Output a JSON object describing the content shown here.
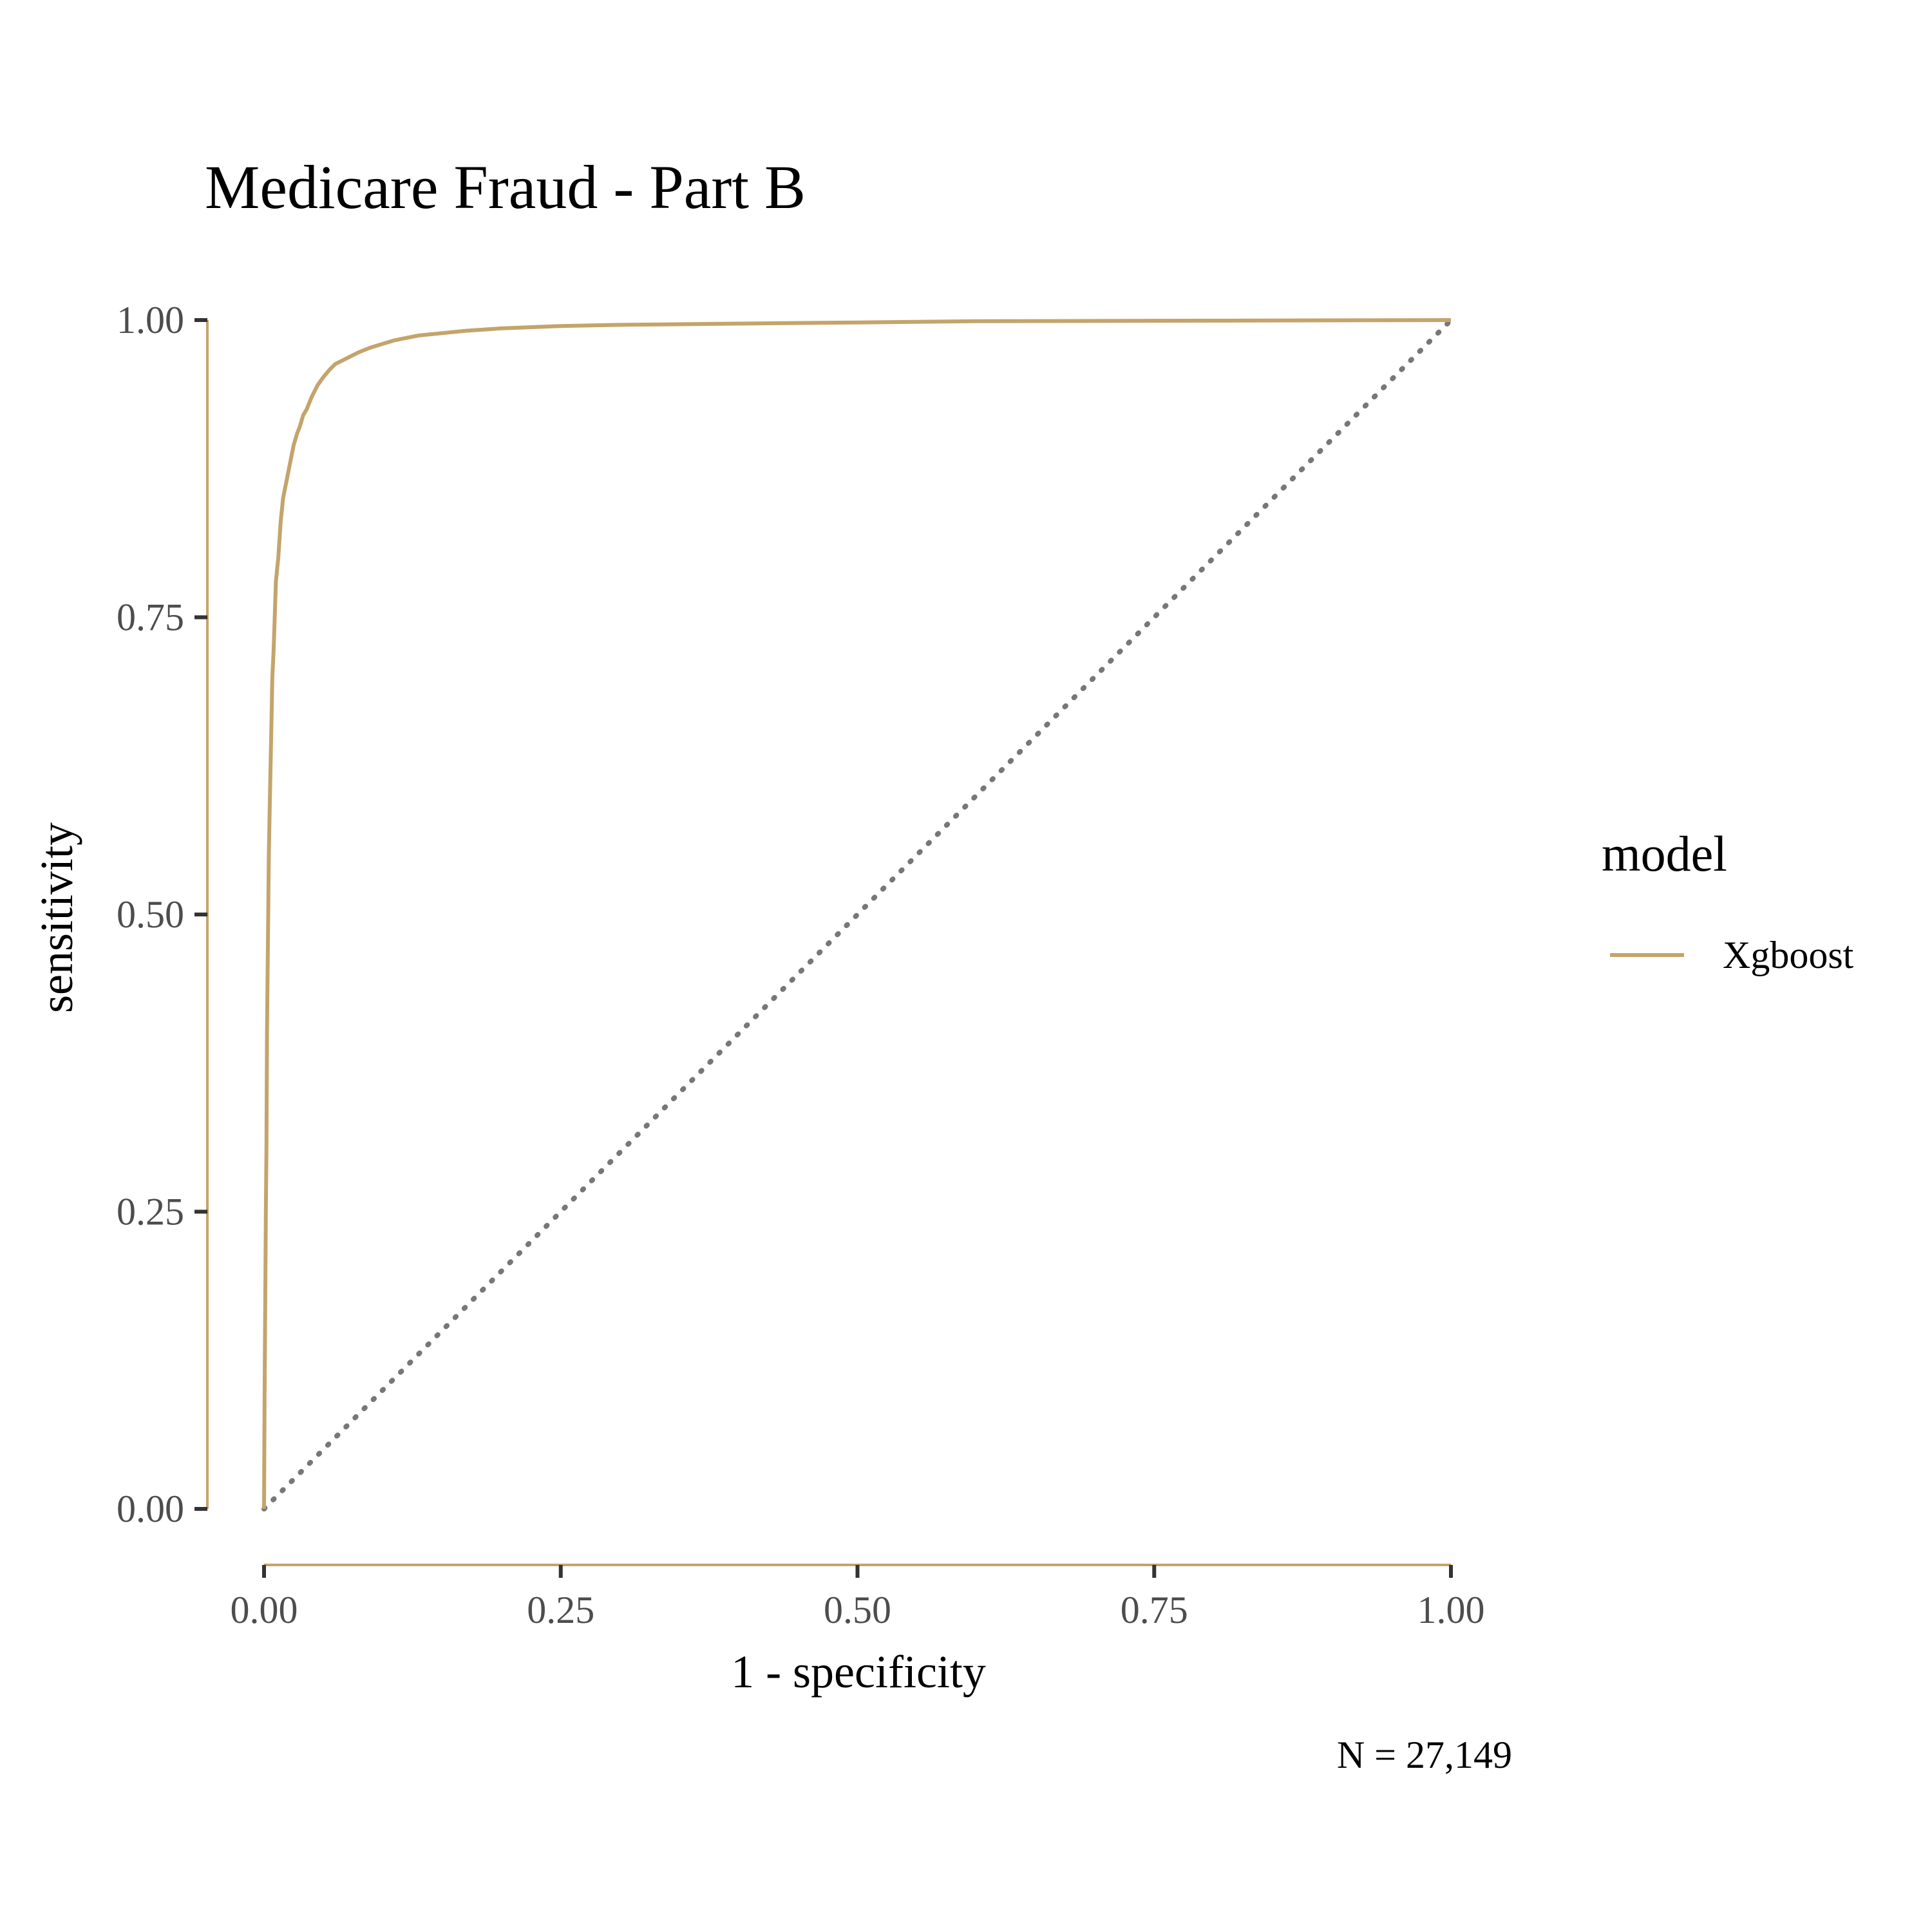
{
  "chart_data": {
    "type": "line",
    "title": "Medicare Fraud - Part B",
    "xlabel": "1 - specificity",
    "ylabel": "sensitivity",
    "caption": "N = 27,149",
    "xlim": [
      0,
      1
    ],
    "ylim": [
      0,
      1
    ],
    "x_ticks": [
      "0.00",
      "0.25",
      "0.50",
      "0.75",
      "1.00"
    ],
    "y_ticks": [
      "0.00",
      "0.25",
      "0.50",
      "0.75",
      "1.00"
    ],
    "grid": false,
    "legend": {
      "title": "model",
      "position": "right",
      "entries": [
        "Xgboost"
      ]
    },
    "reference_line": {
      "style": "dotted",
      "from": [
        0,
        0
      ],
      "to": [
        1,
        1
      ],
      "color": "#777777"
    },
    "series": [
      {
        "name": "Xgboost",
        "color": "#C4A46B",
        "x": [
          0,
          0.0005,
          0.001,
          0.0015,
          0.002,
          0.0025,
          0.003,
          0.0035,
          0.004,
          0.005,
          0.006,
          0.007,
          0.008,
          0.009,
          0.01,
          0.012,
          0.014,
          0.016,
          0.018,
          0.02,
          0.022,
          0.025,
          0.028,
          0.03,
          0.033,
          0.036,
          0.04,
          0.045,
          0.05,
          0.055,
          0.06,
          0.07,
          0.08,
          0.09,
          0.1,
          0.11,
          0.12,
          0.13,
          0.15,
          0.17,
          0.2,
          0.25,
          0.3,
          0.4,
          0.5,
          0.6,
          0.8,
          1.0
        ],
        "y": [
          0,
          0.1,
          0.17,
          0.25,
          0.3,
          0.4,
          0.45,
          0.5,
          0.55,
          0.6,
          0.65,
          0.7,
          0.72,
          0.75,
          0.78,
          0.8,
          0.83,
          0.85,
          0.86,
          0.87,
          0.88,
          0.895,
          0.905,
          0.91,
          0.92,
          0.925,
          0.935,
          0.945,
          0.952,
          0.958,
          0.963,
          0.968,
          0.973,
          0.977,
          0.98,
          0.983,
          0.985,
          0.987,
          0.989,
          0.991,
          0.993,
          0.995,
          0.996,
          0.997,
          0.998,
          0.999,
          0.9995,
          1.0
        ]
      }
    ]
  }
}
